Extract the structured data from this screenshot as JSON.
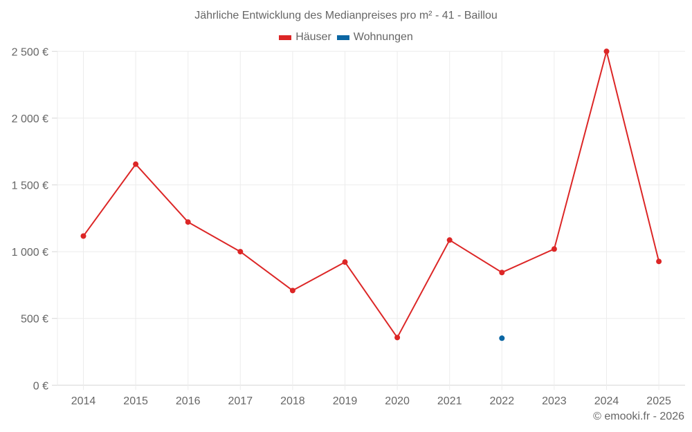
{
  "chart_data": {
    "type": "line",
    "title": "Jährliche Entwicklung des Medianpreises pro m² - 41 - Baillou",
    "xlabel": "",
    "ylabel": "",
    "categories": [
      "2014",
      "2015",
      "2016",
      "2017",
      "2018",
      "2019",
      "2020",
      "2021",
      "2022",
      "2023",
      "2024",
      "2025"
    ],
    "series": [
      {
        "name": "Häuser",
        "color": "#dc2626",
        "values": [
          1117,
          1655,
          1222,
          1000,
          709,
          922,
          357,
          1087,
          844,
          1020,
          2500,
          927
        ]
      },
      {
        "name": "Wohnungen",
        "color": "#0b66a3",
        "values": [
          null,
          null,
          null,
          null,
          null,
          null,
          null,
          null,
          352,
          null,
          null,
          null
        ]
      }
    ],
    "ylim": [
      0,
      2500
    ],
    "yticks": [
      0,
      500,
      1000,
      1500,
      2000,
      2500
    ],
    "ytick_labels": [
      "0 €",
      "500 €",
      "1 000 €",
      "1 500 €",
      "2 000 €",
      "2 500 €"
    ],
    "grid": true,
    "legend_position": "top"
  },
  "header": {
    "title": "Jährliche Entwicklung des Medianpreises pro m² - 41 - Baillou"
  },
  "legend": {
    "items": [
      {
        "label": "Häuser",
        "color": "#dc2626"
      },
      {
        "label": "Wohnungen",
        "color": "#0b66a3"
      }
    ]
  },
  "footer": {
    "credit": "© emooki.fr - 2026"
  }
}
